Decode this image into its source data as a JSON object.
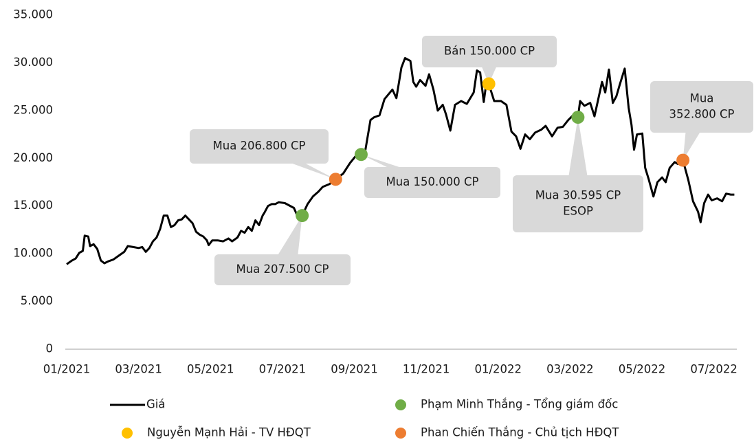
{
  "chart_data": {
    "type": "line",
    "xlim": [
      0,
      18.6
    ],
    "xticks": [
      {
        "value": 0,
        "label": "01/2021"
      },
      {
        "value": 2,
        "label": "03/2021"
      },
      {
        "value": 4,
        "label": "05/2021"
      },
      {
        "value": 6,
        "label": "07/2021"
      },
      {
        "value": 8,
        "label": "09/2021"
      },
      {
        "value": 10,
        "label": "11/2021"
      },
      {
        "value": 12,
        "label": "01/2022"
      },
      {
        "value": 14,
        "label": "03/2022"
      },
      {
        "value": 16,
        "label": "05/2022"
      },
      {
        "value": 18,
        "label": "07/2022"
      }
    ],
    "ylim": [
      0,
      35000
    ],
    "yticks": [
      0,
      {
        "value": 5000,
        "label": "5.000"
      },
      {
        "value": 10000,
        "label": "10.000"
      },
      {
        "value": 15000,
        "label": "15.000"
      },
      {
        "value": 20000,
        "label": "20.000"
      },
      {
        "value": 25000,
        "label": "25.000"
      },
      {
        "value": 30000,
        "label": "30.000"
      },
      {
        "value": 35000,
        "label": "35.000"
      }
    ],
    "series": [
      {
        "name": "Giá",
        "color": "#000000",
        "x": [
          0,
          0.15,
          0.25,
          0.35,
          0.45,
          0.5,
          0.6,
          0.65,
          0.75,
          0.85,
          0.95,
          1.05,
          1.15,
          1.3,
          1.45,
          1.6,
          1.7,
          1.85,
          2.0,
          2.1,
          2.2,
          2.3,
          2.4,
          2.5,
          2.6,
          2.7,
          2.8,
          2.9,
          3.0,
          3.1,
          3.2,
          3.3,
          3.4,
          3.5,
          3.6,
          3.7,
          3.8,
          3.9,
          3.95,
          4.05,
          4.2,
          4.35,
          4.5,
          4.6,
          4.75,
          4.85,
          4.95,
          5.05,
          5.15,
          5.25,
          5.35,
          5.45,
          5.5,
          5.6,
          5.7,
          5.8,
          5.9,
          6.07,
          6.32,
          6.45,
          6.55,
          6.7,
          6.85,
          7.0,
          7.12,
          7.31,
          7.48,
          7.69,
          7.88,
          8.03,
          8.19,
          8.3,
          8.45,
          8.55,
          8.7,
          8.84,
          9.06,
          9.17,
          9.31,
          9.41,
          9.56,
          9.64,
          9.72,
          9.83,
          9.98,
          10.08,
          10.2,
          10.32,
          10.46,
          10.55,
          10.67,
          10.8,
          10.97,
          11.13,
          11.32,
          11.41,
          11.5,
          11.6,
          11.66,
          11.74,
          11.89,
          12.08,
          12.23,
          12.37,
          12.5,
          12.62,
          12.75,
          12.88,
          13.03,
          13.2,
          13.32,
          13.5,
          13.65,
          13.8,
          13.95,
          14.08,
          14.22,
          14.28,
          14.4,
          14.56,
          14.68,
          14.75,
          14.89,
          14.98,
          15.08,
          15.19,
          15.29,
          15.38,
          15.52,
          15.63,
          15.71,
          15.78,
          15.86,
          16.01,
          16.09,
          16.18,
          16.32,
          16.43,
          16.56,
          16.66,
          16.77,
          16.91,
          17.0,
          17.14,
          17.29,
          17.42,
          17.56,
          17.63,
          17.73,
          17.84,
          17.94,
          18.09,
          18.23,
          18.34,
          18.47,
          18.57
        ],
        "values": [
          8900,
          9300,
          9500,
          10100,
          10300,
          11900,
          11800,
          10800,
          11000,
          10500,
          9300,
          9000,
          9200,
          9400,
          9800,
          10200,
          10800,
          10700,
          10600,
          10700,
          10200,
          10600,
          11300,
          11700,
          12600,
          14000,
          14000,
          12800,
          13000,
          13500,
          13600,
          14000,
          13600,
          13200,
          12300,
          12000,
          11800,
          11400,
          10900,
          11400,
          11400,
          11300,
          11600,
          11300,
          11700,
          12400,
          12200,
          12800,
          12400,
          13500,
          13000,
          14000,
          14300,
          15000,
          15200,
          15200,
          15400,
          15300,
          14800,
          13700,
          14000,
          15200,
          16000,
          16500,
          17000,
          17300,
          17800,
          18400,
          19500,
          20200,
          20400,
          20700,
          24000,
          24300,
          24500,
          26200,
          27200,
          26300,
          29500,
          30500,
          30200,
          28000,
          27500,
          28200,
          27600,
          28800,
          27200,
          25000,
          25600,
          24600,
          22900,
          25600,
          26000,
          25700,
          26900,
          29200,
          29000,
          25900,
          27600,
          27800,
          26000,
          26000,
          25600,
          22800,
          22300,
          21000,
          22500,
          22000,
          22700,
          23000,
          23400,
          22300,
          23200,
          23300,
          24000,
          24500,
          24300,
          26000,
          25500,
          25800,
          24400,
          25600,
          28000,
          26900,
          29300,
          25800,
          26500,
          27700,
          29400,
          25300,
          23500,
          20900,
          22500,
          22600,
          19000,
          17900,
          16000,
          17500,
          18000,
          17500,
          19000,
          19600,
          19400,
          19800,
          17700,
          15500,
          14400,
          13300,
          15300,
          16200,
          15600,
          15800,
          15500,
          16300,
          16200,
          16200
        ]
      }
    ],
    "groups": [
      {
        "name": "Phạm Minh Thắng - Tổng giám đốc",
        "color": "#70ad47"
      },
      {
        "name": "Nguyễn Mạnh Hải - TV HĐQT",
        "color": "#ffc000"
      },
      {
        "name": "Phan Chiến Thắng - Chủ tịch HĐQT",
        "color": "#ed7d31"
      }
    ],
    "events": [
      {
        "x": 6.55,
        "value": 14000,
        "group": 0,
        "label": [
          "Mua 207.500 CP"
        ]
      },
      {
        "x": 7.48,
        "value": 17800,
        "group": 2,
        "label": [
          "Mua 206.800 CP"
        ]
      },
      {
        "x": 8.19,
        "value": 20400,
        "group": 0,
        "label": [
          "Mua 150.000 CP"
        ]
      },
      {
        "x": 11.74,
        "value": 27800,
        "group": 1,
        "label": [
          "Bán 150.000 CP"
        ]
      },
      {
        "x": 14.22,
        "value": 24300,
        "group": 0,
        "label": [
          "Mua 30.595 CP",
          "ESOP"
        ]
      },
      {
        "x": 17.14,
        "value": 19800,
        "group": 2,
        "label": [
          "Mua",
          "352.800 CP"
        ]
      }
    ]
  }
}
